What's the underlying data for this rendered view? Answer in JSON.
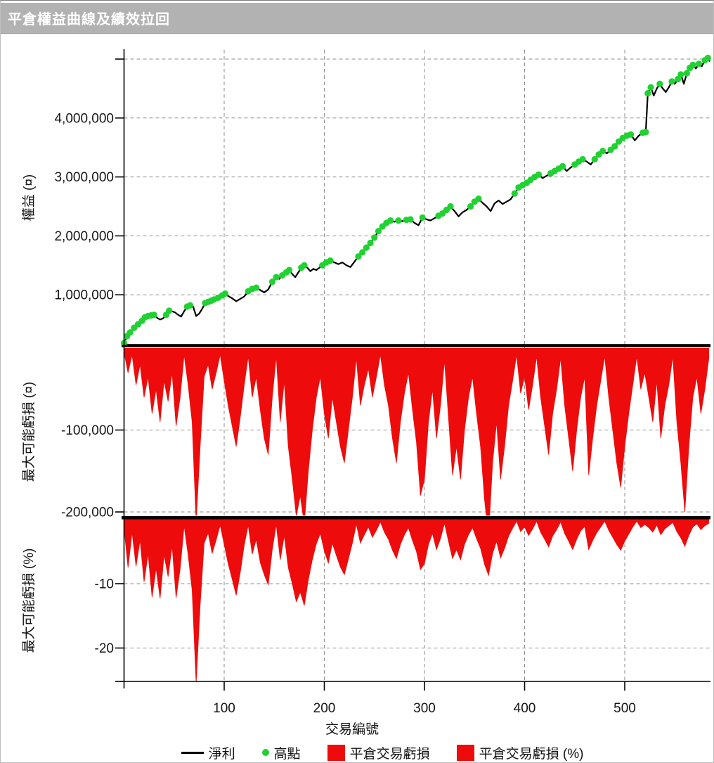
{
  "header": {
    "title": "平倉權益曲線及績效拉回"
  },
  "chart_data": {
    "type": "area",
    "subtype": "multi-panel-equity-drawdown",
    "x_label": "交易編號",
    "x_range": [
      0,
      586
    ],
    "x_ticks": [
      100,
      200,
      300,
      400,
      500
    ],
    "x_tick_labels": [
      "100",
      "200",
      "300",
      "400",
      "500"
    ],
    "grid": "dashed",
    "panels": [
      {
        "id": "equity",
        "type": "line",
        "ylabel": "權益 (¤)",
        "series_label": "淨利",
        "marker_label": "高點",
        "line_color": "#000000",
        "marker_color": "#1fd231",
        "y_unit": 1000000,
        "ylim": [
          140000,
          5150000
        ],
        "y_ticks": [
          1000000,
          2000000,
          3000000,
          4000000
        ],
        "y_tick_labels": [
          "1,000,000",
          "2,000,000",
          "3,000,000",
          "4,000,000"
        ],
        "y_grid_extra": [
          5000000
        ],
        "x": [
          0,
          3,
          6,
          10,
          14,
          18,
          21,
          24,
          27,
          30,
          33,
          36,
          39,
          42,
          45,
          48,
          51,
          54,
          57,
          60,
          63,
          66,
          69,
          72,
          75,
          78,
          81,
          84,
          87,
          90,
          94,
          98,
          101,
          104,
          108,
          112,
          116,
          120,
          124,
          128,
          132,
          136,
          140,
          144,
          148,
          152,
          155,
          158,
          162,
          165,
          168,
          171,
          174,
          177,
          180,
          183,
          186,
          189,
          192,
          195,
          198,
          202,
          206,
          210,
          214,
          218,
          222,
          226,
          230,
          234,
          238,
          242,
          246,
          250,
          254,
          258,
          262,
          266,
          270,
          274,
          278,
          282,
          286,
          290,
          294,
          298,
          302,
          306,
          310,
          314,
          318,
          322,
          326,
          330,
          334,
          338,
          342,
          346,
          350,
          354,
          358,
          362,
          366,
          370,
          374,
          378,
          382,
          386,
          390,
          394,
          398,
          402,
          406,
          410,
          414,
          418,
          422,
          426,
          430,
          434,
          438,
          442,
          446,
          450,
          454,
          458,
          462,
          466,
          470,
          474,
          478,
          482,
          486,
          490,
          494,
          498,
          502,
          506,
          510,
          514,
          518,
          521,
          523,
          526,
          529,
          532,
          535,
          538,
          541,
          544,
          547,
          550,
          553,
          556,
          559,
          562,
          565,
          568,
          571,
          574,
          577,
          580,
          583,
          585
        ],
        "y": [
          0.18,
          0.3,
          0.36,
          0.44,
          0.5,
          0.56,
          0.62,
          0.64,
          0.65,
          0.66,
          0.61,
          0.58,
          0.6,
          0.66,
          0.73,
          0.72,
          0.7,
          0.66,
          0.63,
          0.72,
          0.8,
          0.82,
          0.8,
          0.64,
          0.68,
          0.76,
          0.86,
          0.88,
          0.9,
          0.92,
          0.95,
          0.99,
          1.02,
          0.98,
          0.94,
          0.89,
          0.93,
          0.97,
          1.06,
          1.1,
          1.12,
          1.08,
          1.04,
          1.09,
          1.22,
          1.3,
          1.27,
          1.33,
          1.38,
          1.42,
          1.35,
          1.3,
          1.38,
          1.46,
          1.5,
          1.46,
          1.4,
          1.44,
          1.42,
          1.46,
          1.5,
          1.55,
          1.58,
          1.55,
          1.52,
          1.55,
          1.5,
          1.47,
          1.56,
          1.65,
          1.72,
          1.8,
          1.88,
          1.97,
          2.08,
          2.16,
          2.22,
          2.26,
          2.24,
          2.26,
          2.25,
          2.27,
          2.28,
          2.22,
          2.18,
          2.31,
          2.28,
          2.26,
          2.3,
          2.34,
          2.38,
          2.44,
          2.5,
          2.42,
          2.33,
          2.4,
          2.44,
          2.5,
          2.58,
          2.63,
          2.56,
          2.5,
          2.42,
          2.55,
          2.6,
          2.54,
          2.58,
          2.62,
          2.72,
          2.82,
          2.86,
          2.9,
          2.95,
          3.0,
          3.04,
          2.98,
          3.02,
          3.06,
          3.1,
          3.14,
          3.18,
          3.1,
          3.16,
          3.21,
          3.26,
          3.3,
          3.26,
          3.21,
          3.3,
          3.38,
          3.44,
          3.4,
          3.46,
          3.52,
          3.6,
          3.66,
          3.7,
          3.72,
          3.62,
          3.7,
          3.75,
          3.76,
          4.42,
          4.52,
          4.38,
          4.5,
          4.58,
          4.5,
          4.44,
          4.52,
          4.62,
          4.58,
          4.66,
          4.74,
          4.58,
          4.76,
          4.85,
          4.9,
          4.84,
          4.92,
          4.88,
          4.98,
          5.02,
          4.96
        ]
      },
      {
        "id": "drawdown-currency",
        "type": "area",
        "series_label": "平倉交易虧損",
        "ylabel": "最大可能虧損 (¤)",
        "color": "#ee0b0b",
        "y_unit": 1000,
        "ylim": [
          -205000,
          0
        ],
        "y_ticks": [
          -100000,
          -200000
        ],
        "y_tick_labels": [
          "-100,000",
          "-200,000"
        ],
        "x": [
          0,
          4,
          8,
          12,
          16,
          20,
          24,
          28,
          32,
          36,
          40,
          44,
          48,
          52,
          56,
          60,
          64,
          68,
          72,
          76,
          80,
          84,
          88,
          92,
          96,
          100,
          104,
          108,
          112,
          116,
          120,
          124,
          128,
          132,
          136,
          140,
          144,
          148,
          152,
          156,
          160,
          164,
          168,
          172,
          176,
          180,
          184,
          188,
          192,
          196,
          200,
          204,
          208,
          212,
          216,
          220,
          224,
          228,
          232,
          236,
          240,
          244,
          248,
          252,
          256,
          260,
          264,
          268,
          272,
          276,
          280,
          284,
          288,
          292,
          296,
          300,
          304,
          308,
          312,
          316,
          320,
          324,
          328,
          332,
          336,
          340,
          344,
          348,
          352,
          356,
          360,
          364,
          368,
          372,
          376,
          380,
          384,
          388,
          392,
          396,
          400,
          404,
          408,
          412,
          416,
          420,
          424,
          428,
          432,
          436,
          440,
          444,
          448,
          452,
          456,
          460,
          464,
          468,
          472,
          476,
          480,
          484,
          488,
          492,
          496,
          500,
          504,
          508,
          512,
          516,
          520,
          524,
          528,
          532,
          536,
          540,
          544,
          548,
          552,
          556,
          560,
          564,
          568,
          572,
          576,
          580,
          584
        ],
        "y": [
          -5,
          -30,
          -8,
          -45,
          -20,
          -60,
          -35,
          -80,
          -50,
          -90,
          -40,
          -65,
          -30,
          -95,
          -60,
          -8,
          -45,
          -90,
          -213,
          -120,
          -35,
          -20,
          -50,
          -30,
          -8,
          -40,
          -70,
          -95,
          -120,
          -85,
          -45,
          -10,
          -60,
          -35,
          -75,
          -110,
          -130,
          -60,
          -10,
          -90,
          -40,
          -120,
          -160,
          -205,
          -180,
          -215,
          -150,
          -100,
          -60,
          -35,
          -80,
          -110,
          -60,
          -90,
          -120,
          -140,
          -100,
          -60,
          -12,
          -70,
          -45,
          -25,
          -60,
          -35,
          -8,
          -45,
          -70,
          -110,
          -140,
          -90,
          -55,
          -30,
          -75,
          -115,
          -180,
          -160,
          -90,
          -50,
          -110,
          -70,
          -15,
          -85,
          -155,
          -120,
          -160,
          -100,
          -60,
          -35,
          -80,
          -120,
          -185,
          -230,
          -140,
          -90,
          -160,
          -120,
          -70,
          -40,
          -8,
          -55,
          -35,
          -75,
          -45,
          -10,
          -60,
          -95,
          -130,
          -80,
          -50,
          -12,
          -70,
          -110,
          -150,
          -100,
          -60,
          -35,
          -155,
          -110,
          -70,
          -40,
          -10,
          -60,
          -100,
          -140,
          -170,
          -120,
          -80,
          -45,
          -10,
          -50,
          -30,
          -60,
          -90,
          -40,
          -110,
          -70,
          -45,
          -10,
          -90,
          -140,
          -200,
          -120,
          -60,
          -35,
          -80,
          -50,
          -12
        ]
      },
      {
        "id": "drawdown-percent",
        "type": "area",
        "series_label": "平倉交易虧損 (%)",
        "ylabel": "最大可能虧損 (%)",
        "color": "#ee0b0b",
        "y_unit": 1,
        "ylim": [
          -25.2,
          0
        ],
        "y_ticks": [
          -10,
          -20
        ],
        "y_tick_labels": [
          "-10",
          "-20"
        ],
        "x": [
          0,
          4,
          8,
          12,
          16,
          20,
          24,
          28,
          32,
          36,
          40,
          44,
          48,
          52,
          56,
          60,
          64,
          68,
          72,
          76,
          80,
          84,
          88,
          92,
          96,
          100,
          104,
          108,
          112,
          116,
          120,
          124,
          128,
          132,
          136,
          140,
          144,
          148,
          152,
          156,
          160,
          164,
          168,
          172,
          176,
          180,
          184,
          188,
          192,
          196,
          200,
          204,
          208,
          212,
          216,
          220,
          224,
          228,
          232,
          236,
          240,
          244,
          248,
          252,
          256,
          260,
          264,
          268,
          272,
          276,
          280,
          284,
          288,
          292,
          296,
          300,
          304,
          308,
          312,
          316,
          320,
          324,
          328,
          332,
          336,
          340,
          344,
          348,
          352,
          356,
          360,
          364,
          368,
          372,
          376,
          380,
          384,
          388,
          392,
          396,
          400,
          404,
          408,
          412,
          416,
          420,
          424,
          428,
          432,
          436,
          440,
          444,
          448,
          452,
          456,
          460,
          464,
          468,
          472,
          476,
          480,
          484,
          488,
          492,
          496,
          500,
          504,
          508,
          512,
          516,
          520,
          524,
          528,
          532,
          536,
          540,
          544,
          548,
          552,
          556,
          560,
          564,
          568,
          572,
          576,
          580,
          584
        ],
        "y": [
          -1.3,
          -7.5,
          -2.0,
          -7.3,
          -3.2,
          -9.7,
          -5.3,
          -12.1,
          -7.6,
          -12.3,
          -5.5,
          -8.9,
          -4.1,
          -12.2,
          -7.7,
          -1.0,
          -5.5,
          -11.0,
          -25.5,
          -13.3,
          -3.7,
          -2.1,
          -5.3,
          -3.2,
          -0.9,
          -3.9,
          -6.9,
          -9.3,
          -11.8,
          -8.3,
          -4.0,
          -0.9,
          -5.4,
          -3.1,
          -6.7,
          -8.6,
          -10.2,
          -4.7,
          -0.8,
          -6.3,
          -2.5,
          -7.5,
          -10.0,
          -12.8,
          -11.3,
          -13.4,
          -9.4,
          -6.3,
          -3.8,
          -2.2,
          -4.9,
          -6.8,
          -3.7,
          -5.6,
          -7.4,
          -8.6,
          -6.2,
          -3.7,
          -0.7,
          -3.7,
          -2.4,
          -1.2,
          -2.8,
          -1.7,
          -0.4,
          -2.0,
          -3.1,
          -4.8,
          -6.1,
          -3.9,
          -2.4,
          -1.3,
          -3.3,
          -5.0,
          -7.8,
          -6.9,
          -3.9,
          -2.2,
          -4.7,
          -3.0,
          -0.6,
          -3.4,
          -6.1,
          -4.7,
          -6.3,
          -3.9,
          -2.4,
          -1.3,
          -3.0,
          -4.5,
          -7.0,
          -8.7,
          -5.3,
          -3.4,
          -6.0,
          -4.5,
          -2.6,
          -1.4,
          -0.3,
          -1.9,
          -1.2,
          -2.5,
          -1.5,
          -0.3,
          -2.0,
          -3.1,
          -4.3,
          -2.6,
          -1.6,
          -0.4,
          -2.2,
          -3.4,
          -4.7,
          -3.1,
          -1.8,
          -1.1,
          -4.7,
          -3.3,
          -2.1,
          -1.2,
          -0.3,
          -1.7,
          -2.8,
          -3.9,
          -4.8,
          -3.4,
          -2.3,
          -1.2,
          -0.3,
          -1.3,
          -0.8,
          -1.3,
          -2.0,
          -0.9,
          -2.4,
          -1.5,
          -1.0,
          -0.5,
          -1.9,
          -2.9,
          -4.2,
          -2.5,
          -1.2,
          -0.7,
          -1.6,
          -1.0,
          -0.6
        ]
      }
    ],
    "legend": [
      {
        "swatch": "line",
        "color": "#000000",
        "label": "淨利"
      },
      {
        "swatch": "dot",
        "color": "#1fd231",
        "label": "高點"
      },
      {
        "swatch": "rect",
        "color": "#ee0b0b",
        "label": "平倉交易虧損"
      },
      {
        "swatch": "rect",
        "color": "#ee0b0b",
        "label": "平倉交易虧損 (%)"
      }
    ]
  }
}
